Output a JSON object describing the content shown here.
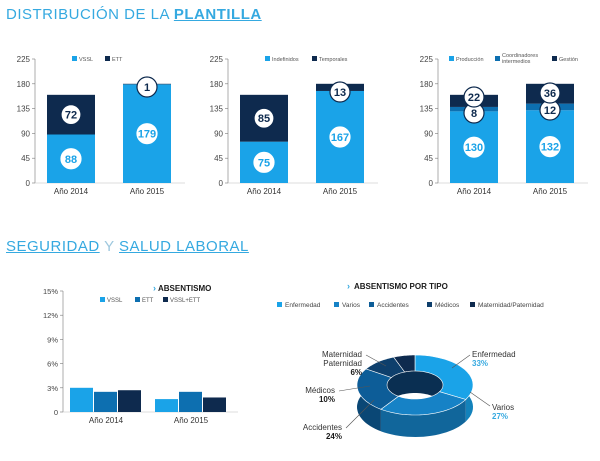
{
  "section1": {
    "title_light": "DISTRIBUCIÓN DE LA",
    "title_bold": "PLANTILLA"
  },
  "section2": {
    "title_a": "SEGURIDAD",
    "title_sep": "Y",
    "title_b": "SALUD LABORAL"
  },
  "colors": {
    "light": "#1aa3e8",
    "dark": "#0e2a4e",
    "mid": "#0d6fb0",
    "accent": "#35a9e0"
  },
  "chart_data": [
    {
      "type": "bar",
      "stacked": true,
      "categories": [
        "Año 2014",
        "Año 2015"
      ],
      "series": [
        {
          "name": "VSSL",
          "values": [
            88,
            179
          ]
        },
        {
          "name": "ETT",
          "values": [
            72,
            1
          ]
        }
      ],
      "ylim": [
        0,
        225
      ],
      "yticks": [
        "0",
        "45",
        "90",
        "135",
        "180",
        "225"
      ]
    },
    {
      "type": "bar",
      "stacked": true,
      "categories": [
        "Año 2014",
        "Año 2015"
      ],
      "series": [
        {
          "name": "Indefinidos",
          "values": [
            75,
            167
          ]
        },
        {
          "name": "Temporales",
          "values": [
            85,
            13
          ]
        }
      ],
      "ylim": [
        0,
        225
      ],
      "yticks": [
        "0",
        "45",
        "90",
        "135",
        "180",
        "225"
      ]
    },
    {
      "type": "bar",
      "stacked": true,
      "categories": [
        "Año 2014",
        "Año 2015"
      ],
      "series": [
        {
          "name": "Producción",
          "values": [
            130,
            132
          ]
        },
        {
          "name": "Coordinadores intermedios",
          "values": [
            8,
            12
          ]
        },
        {
          "name": "Gestión",
          "values": [
            22,
            36
          ]
        }
      ],
      "ylim": [
        0,
        225
      ],
      "yticks": [
        "0",
        "45",
        "90",
        "135",
        "180",
        "225"
      ]
    },
    {
      "type": "bar",
      "title": "ABSENTISMO",
      "categories": [
        "Año 2014",
        "Año 2015"
      ],
      "series": [
        {
          "name": "VSSL",
          "values": [
            3.0,
            1.6
          ]
        },
        {
          "name": "ETT",
          "values": [
            2.5,
            2.5
          ]
        },
        {
          "name": "VSSL+ETT",
          "values": [
            2.7,
            1.8
          ]
        }
      ],
      "ylim": [
        0,
        15
      ],
      "yticks": [
        "0",
        "3%",
        "6%",
        "9%",
        "12%",
        "15%"
      ]
    },
    {
      "type": "pie",
      "title": "ABSENTISMO POR TIPO",
      "labels": [
        "Enfermedad",
        "Varios",
        "Accidentes",
        "Médicos",
        "Maternidad/Paternidad"
      ],
      "values": [
        33,
        27,
        24,
        10,
        6
      ],
      "value_labels": [
        "33%",
        "27%",
        "24%",
        "10%",
        "6%"
      ],
      "callout_labels": [
        "Enfermedad",
        "Varios",
        "Accidentes",
        "Médicos",
        "Maternidad Paternidad"
      ]
    }
  ]
}
